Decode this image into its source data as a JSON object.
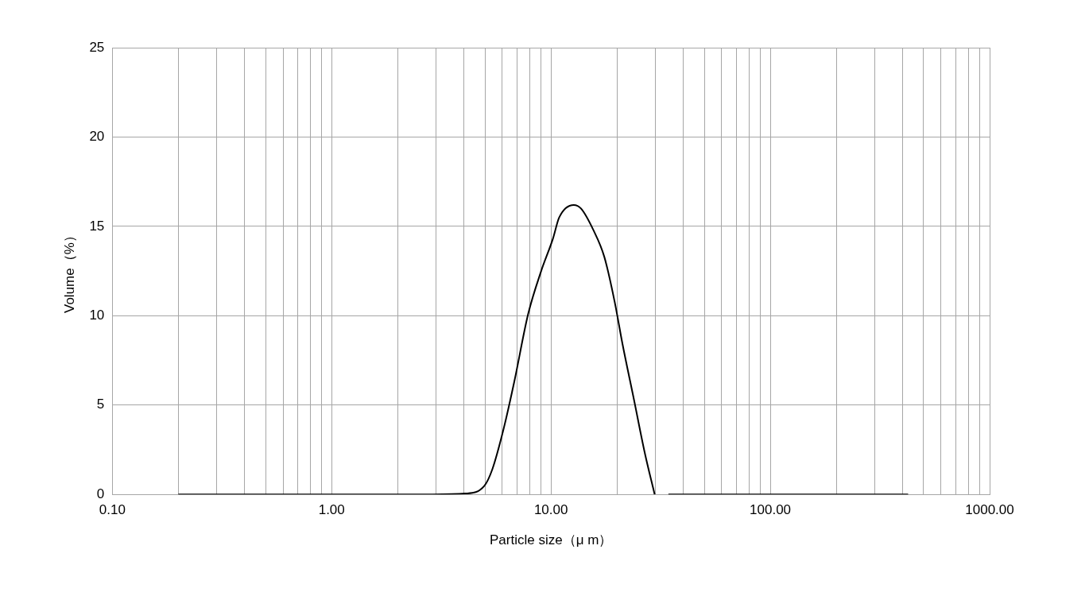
{
  "chart_data": {
    "type": "line",
    "xlabel": "Particle size（μ m）",
    "ylabel": "Volume（%）",
    "log": "x",
    "grid": true,
    "legend": false,
    "marker": "none",
    "line_style": "solid",
    "xlim": [
      0.1,
      1000
    ],
    "ylim": [
      0,
      25
    ],
    "xticks": [
      {
        "value": 0.1,
        "label": "0.10"
      },
      {
        "value": 0.2,
        "label": null
      },
      {
        "value": 0.3,
        "label": null
      },
      {
        "value": 0.4,
        "label": null
      },
      {
        "value": 0.5,
        "label": null
      },
      {
        "value": 0.6,
        "label": null
      },
      {
        "value": 0.7,
        "label": null
      },
      {
        "value": 0.8,
        "label": null
      },
      {
        "value": 0.9,
        "label": null
      },
      {
        "value": 1,
        "label": "1.00"
      },
      {
        "value": 2,
        "label": null
      },
      {
        "value": 3,
        "label": null
      },
      {
        "value": 4,
        "label": null
      },
      {
        "value": 5,
        "label": null
      },
      {
        "value": 6,
        "label": null
      },
      {
        "value": 7,
        "label": null
      },
      {
        "value": 8,
        "label": null
      },
      {
        "value": 9,
        "label": null
      },
      {
        "value": 10,
        "label": "10.00"
      },
      {
        "value": 20,
        "label": null
      },
      {
        "value": 30,
        "label": null
      },
      {
        "value": 40,
        "label": null
      },
      {
        "value": 50,
        "label": null
      },
      {
        "value": 60,
        "label": null
      },
      {
        "value": 70,
        "label": null
      },
      {
        "value": 80,
        "label": null
      },
      {
        "value": 90,
        "label": null
      },
      {
        "value": 100,
        "label": "100.00"
      },
      {
        "value": 200,
        "label": null
      },
      {
        "value": 300,
        "label": null
      },
      {
        "value": 400,
        "label": null
      },
      {
        "value": 500,
        "label": null
      },
      {
        "value": 600,
        "label": null
      },
      {
        "value": 700,
        "label": null
      },
      {
        "value": 800,
        "label": null
      },
      {
        "value": 900,
        "label": null
      },
      {
        "value": 1000,
        "label": "1000.00"
      }
    ],
    "yticks": [
      0,
      5,
      10,
      15,
      20,
      25
    ],
    "series": [
      {
        "color": "#000000",
        "x": [
          0.2,
          2.89,
          4.07,
          4.96,
          5.4,
          6.09,
          6.8,
          7.87,
          9.02,
          10.2,
          10.9,
          12.7,
          13.7,
          15.6,
          17.5,
          19.5,
          21.2,
          23.9,
          26.8,
          29.7,
          32,
          34.3,
          425
        ],
        "values": [
          0,
          0,
          0.05,
          0.47,
          1.4,
          3.7,
          6.3,
          10.1,
          12.5,
          14.3,
          15.5,
          16.2,
          16.0,
          14.8,
          13.3,
          10.8,
          8.4,
          5.3,
          2.3,
          0,
          null,
          0,
          0
        ]
      }
    ]
  }
}
